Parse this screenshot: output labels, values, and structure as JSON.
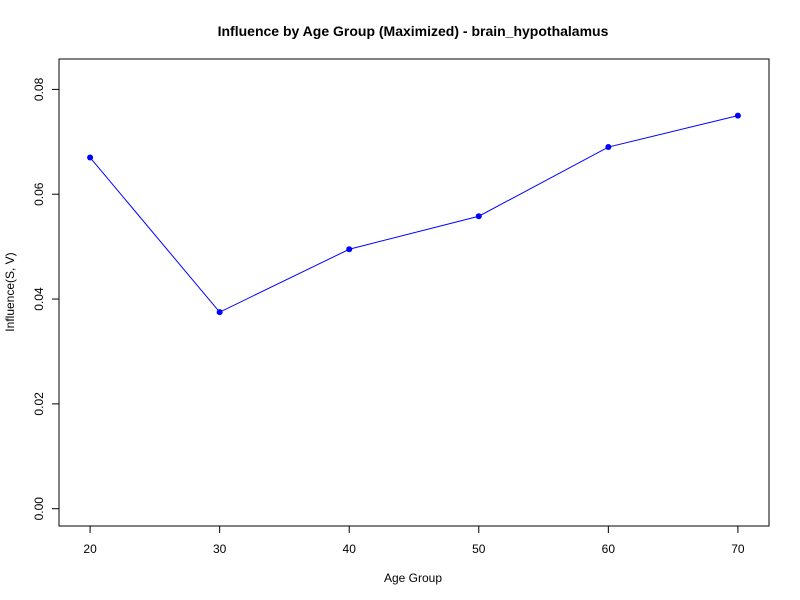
{
  "chart_data": {
    "type": "line",
    "title": "Influence by Age Group (Maximized) - brain_hypothalamus",
    "xlabel": "Age Group",
    "ylabel": "Influence(S, V)",
    "x": [
      20,
      30,
      40,
      50,
      60,
      70
    ],
    "series": [
      {
        "values": [
          0.067,
          0.0375,
          0.0495,
          0.0558,
          0.069,
          0.075
        ],
        "color": "#0000ff"
      }
    ],
    "xticks": [
      "20",
      "30",
      "40",
      "50",
      "60",
      "70"
    ],
    "yticks": [
      "0.00",
      "0.02",
      "0.04",
      "0.06",
      "0.08"
    ],
    "xlim": [
      17.6,
      72.4
    ],
    "ylim": [
      -0.0033,
      0.0858
    ],
    "grid": false,
    "legend": "none"
  }
}
